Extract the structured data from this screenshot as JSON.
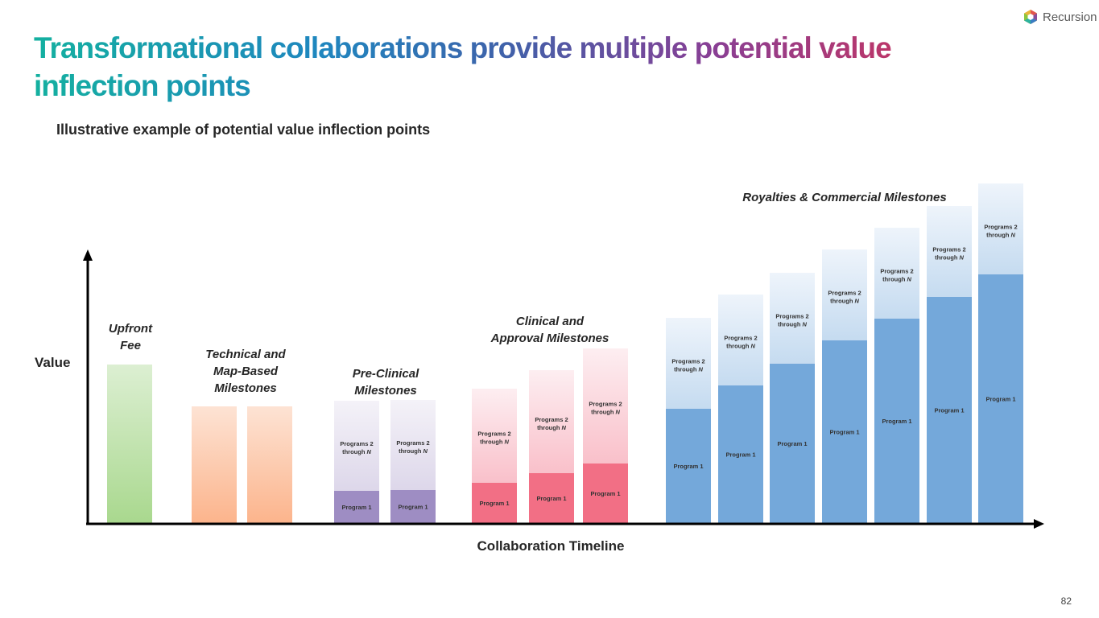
{
  "brand": {
    "name": "Recursion",
    "icon": "hexagon-logo-icon"
  },
  "title": "Transformational collaborations provide multiple potential value inflection points",
  "subtitle": "Illustrative example of potential value inflection points",
  "page_number": "82",
  "chart_data": {
    "type": "bar",
    "stacked": true,
    "xlabel": "Collaboration Timeline",
    "ylabel": "Value",
    "ylim": [
      0,
      430
    ],
    "grid": false,
    "legend": "none",
    "groups": [
      {
        "label": [
          "Upfront",
          "Fee"
        ],
        "color_top": "#dcefd2",
        "color_bottom": "#a9d88e"
      },
      {
        "label": [
          "Technical and",
          "Map-Based",
          "Milestones"
        ],
        "color_top": "#fde3d4",
        "color_bottom": "#fcb48c"
      },
      {
        "label": [
          "Pre-Clinical",
          "Milestones"
        ],
        "color_program1": "#9e8dc3",
        "color_top": "#f4f2f8",
        "color_bottom": "#ddd7ea"
      },
      {
        "label": [
          "Clinical and",
          "Approval Milestones"
        ],
        "color_program1": "#f26f85",
        "color_top": "#fdeef1",
        "color_bottom": "#f9c0ca"
      },
      {
        "label": [
          "Royalties & Commercial Milestones"
        ],
        "color_program1": "#74a8da",
        "color_top": "#eef4fb",
        "color_bottom": "#c5dbf0"
      }
    ],
    "bars": [
      {
        "group": 0,
        "total": 197,
        "program1": null
      },
      {
        "group": 1,
        "total": 145,
        "program1": null
      },
      {
        "group": 1,
        "total": 145,
        "program1": null
      },
      {
        "group": 2,
        "total": 152,
        "program1": 40,
        "program1_label": "Program 1",
        "rest_label": [
          "Programs 2",
          "through N"
        ]
      },
      {
        "group": 2,
        "total": 153,
        "program1": 41,
        "program1_label": "Program 1",
        "rest_label": [
          "Programs 2",
          "through N"
        ]
      },
      {
        "group": 3,
        "total": 167,
        "program1": 50,
        "program1_label": "Program 1",
        "rest_label": [
          "Programs 2",
          "through N"
        ]
      },
      {
        "group": 3,
        "total": 190,
        "program1": 62,
        "program1_label": "Program 1",
        "rest_label": [
          "Programs 2",
          "through N"
        ]
      },
      {
        "group": 3,
        "total": 217,
        "program1": 74,
        "program1_label": "Program 1",
        "rest_label": [
          "Programs 2",
          "through N"
        ]
      },
      {
        "group": 4,
        "total": 255,
        "program1": 142,
        "program1_label": "Program 1",
        "rest_label": [
          "Programs 2",
          "through N"
        ]
      },
      {
        "group": 4,
        "total": 284,
        "program1": 171,
        "program1_label": "Program 1",
        "rest_label": [
          "Programs 2",
          "through N"
        ]
      },
      {
        "group": 4,
        "total": 311,
        "program1": 198,
        "program1_label": "Program 1",
        "rest_label": [
          "Programs 2",
          "through N"
        ]
      },
      {
        "group": 4,
        "total": 340,
        "program1": 227,
        "program1_label": "Program 1",
        "rest_label": [
          "Programs 2",
          "through N"
        ]
      },
      {
        "group": 4,
        "total": 367,
        "program1": 254,
        "program1_label": "Program 1",
        "rest_label": [
          "Programs 2",
          "through N"
        ]
      },
      {
        "group": 4,
        "total": 394,
        "program1": 281,
        "program1_label": "Program 1",
        "rest_label": [
          "Programs 2",
          "through N"
        ]
      },
      {
        "group": 4,
        "total": 422,
        "program1": 309,
        "program1_label": "Program 1",
        "rest_label": [
          "Programs 2",
          "through N"
        ]
      }
    ]
  }
}
